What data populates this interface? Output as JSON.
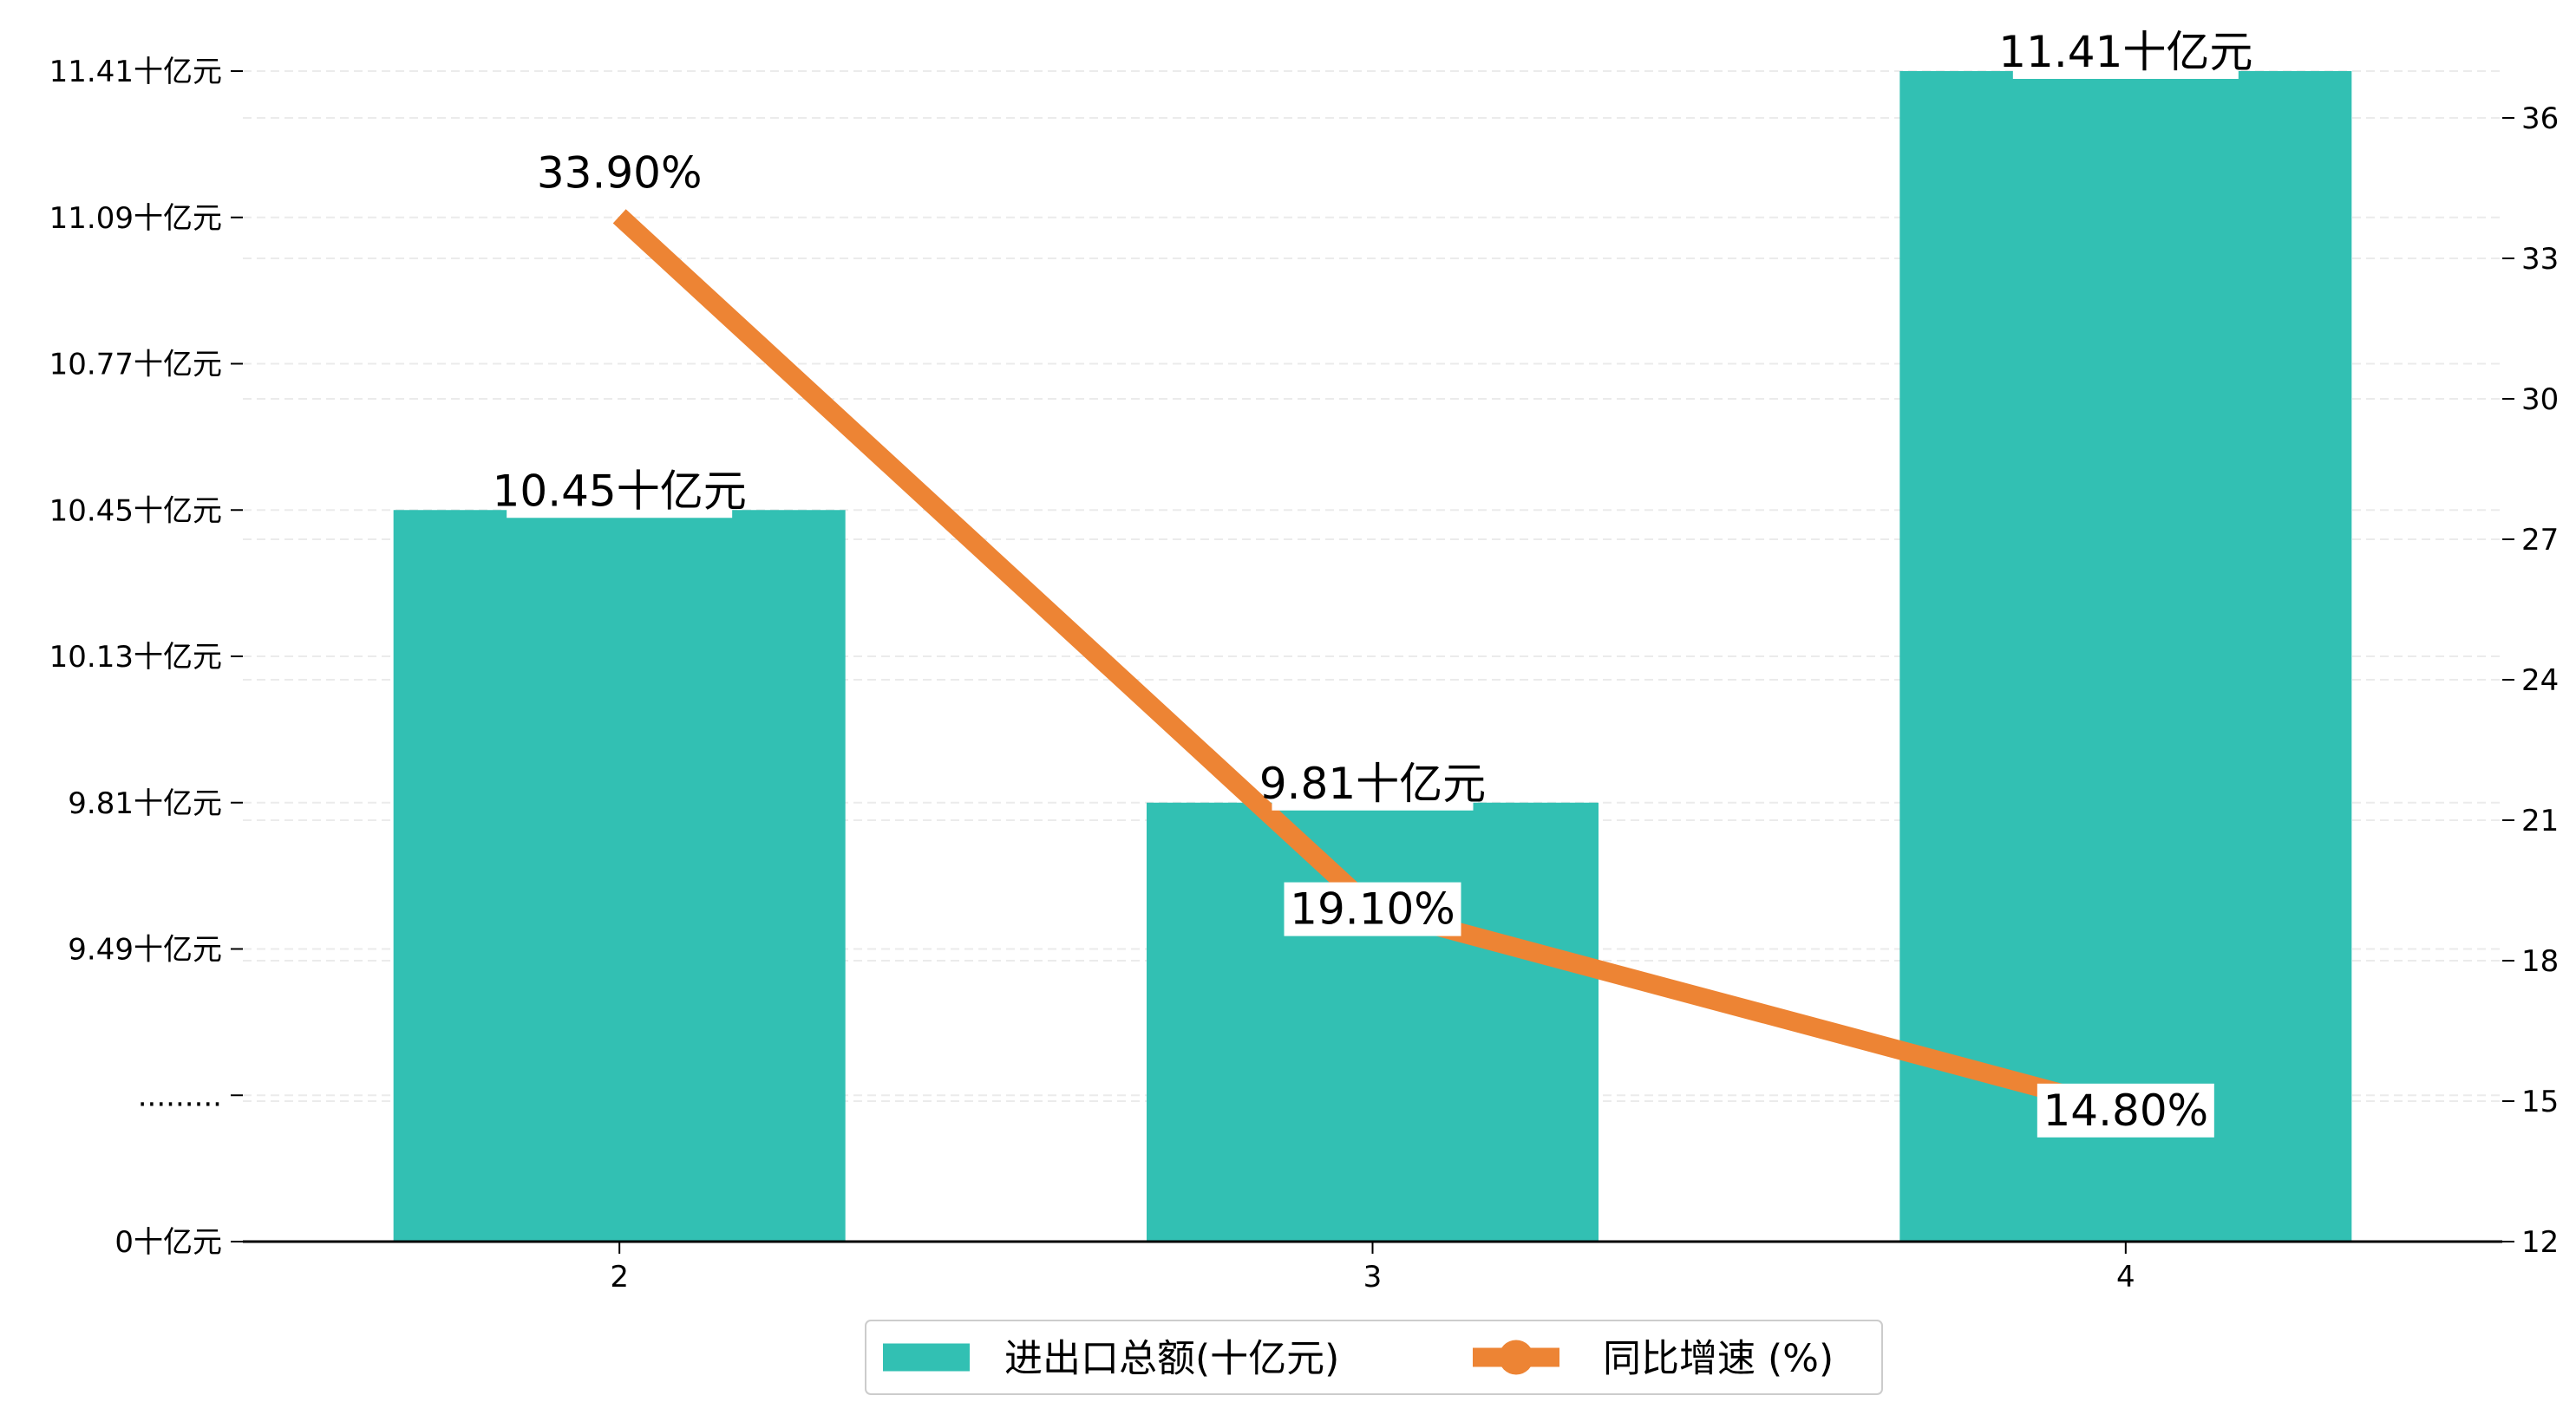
{
  "chart_data": {
    "type": "bar",
    "categories": [
      "2",
      "3",
      "4"
    ],
    "series": [
      {
        "name": "进出口总额(十亿元)",
        "type": "bar",
        "axis": "left",
        "values": [
          10.45,
          9.81,
          11.41
        ],
        "labels": [
          "10.45十亿元",
          "9.81十亿元",
          "11.41十亿元"
        ],
        "color": "#32c0b3"
      },
      {
        "name": "同比增速 (%)",
        "type": "line",
        "axis": "right",
        "values": [
          33.9,
          19.1,
          14.8
        ],
        "labels": [
          "33.90%",
          "19.10%",
          "14.80%"
        ],
        "color": "#ed8434"
      }
    ],
    "left_axis": {
      "broken": true,
      "tick_values": [
        0,
        9.17,
        9.49,
        9.81,
        10.13,
        10.45,
        10.77,
        11.09,
        11.41
      ],
      "tick_labels": [
        "0十亿元",
        ".........",
        "9.49十亿元",
        "9.81十亿元",
        "10.13十亿元",
        "10.45十亿元",
        "10.77十亿元",
        "11.09十亿元",
        "11.41十亿元"
      ]
    },
    "right_axis": {
      "range": [
        12,
        37
      ],
      "tick_values": [
        12,
        15,
        18,
        21,
        24,
        27,
        30,
        33,
        36
      ],
      "tick_labels": [
        "12",
        "15",
        "18",
        "21",
        "24",
        "27",
        "30",
        "33",
        "36"
      ]
    },
    "grid": "horizontal dashed",
    "legend": {
      "position": "bottom-center"
    }
  }
}
